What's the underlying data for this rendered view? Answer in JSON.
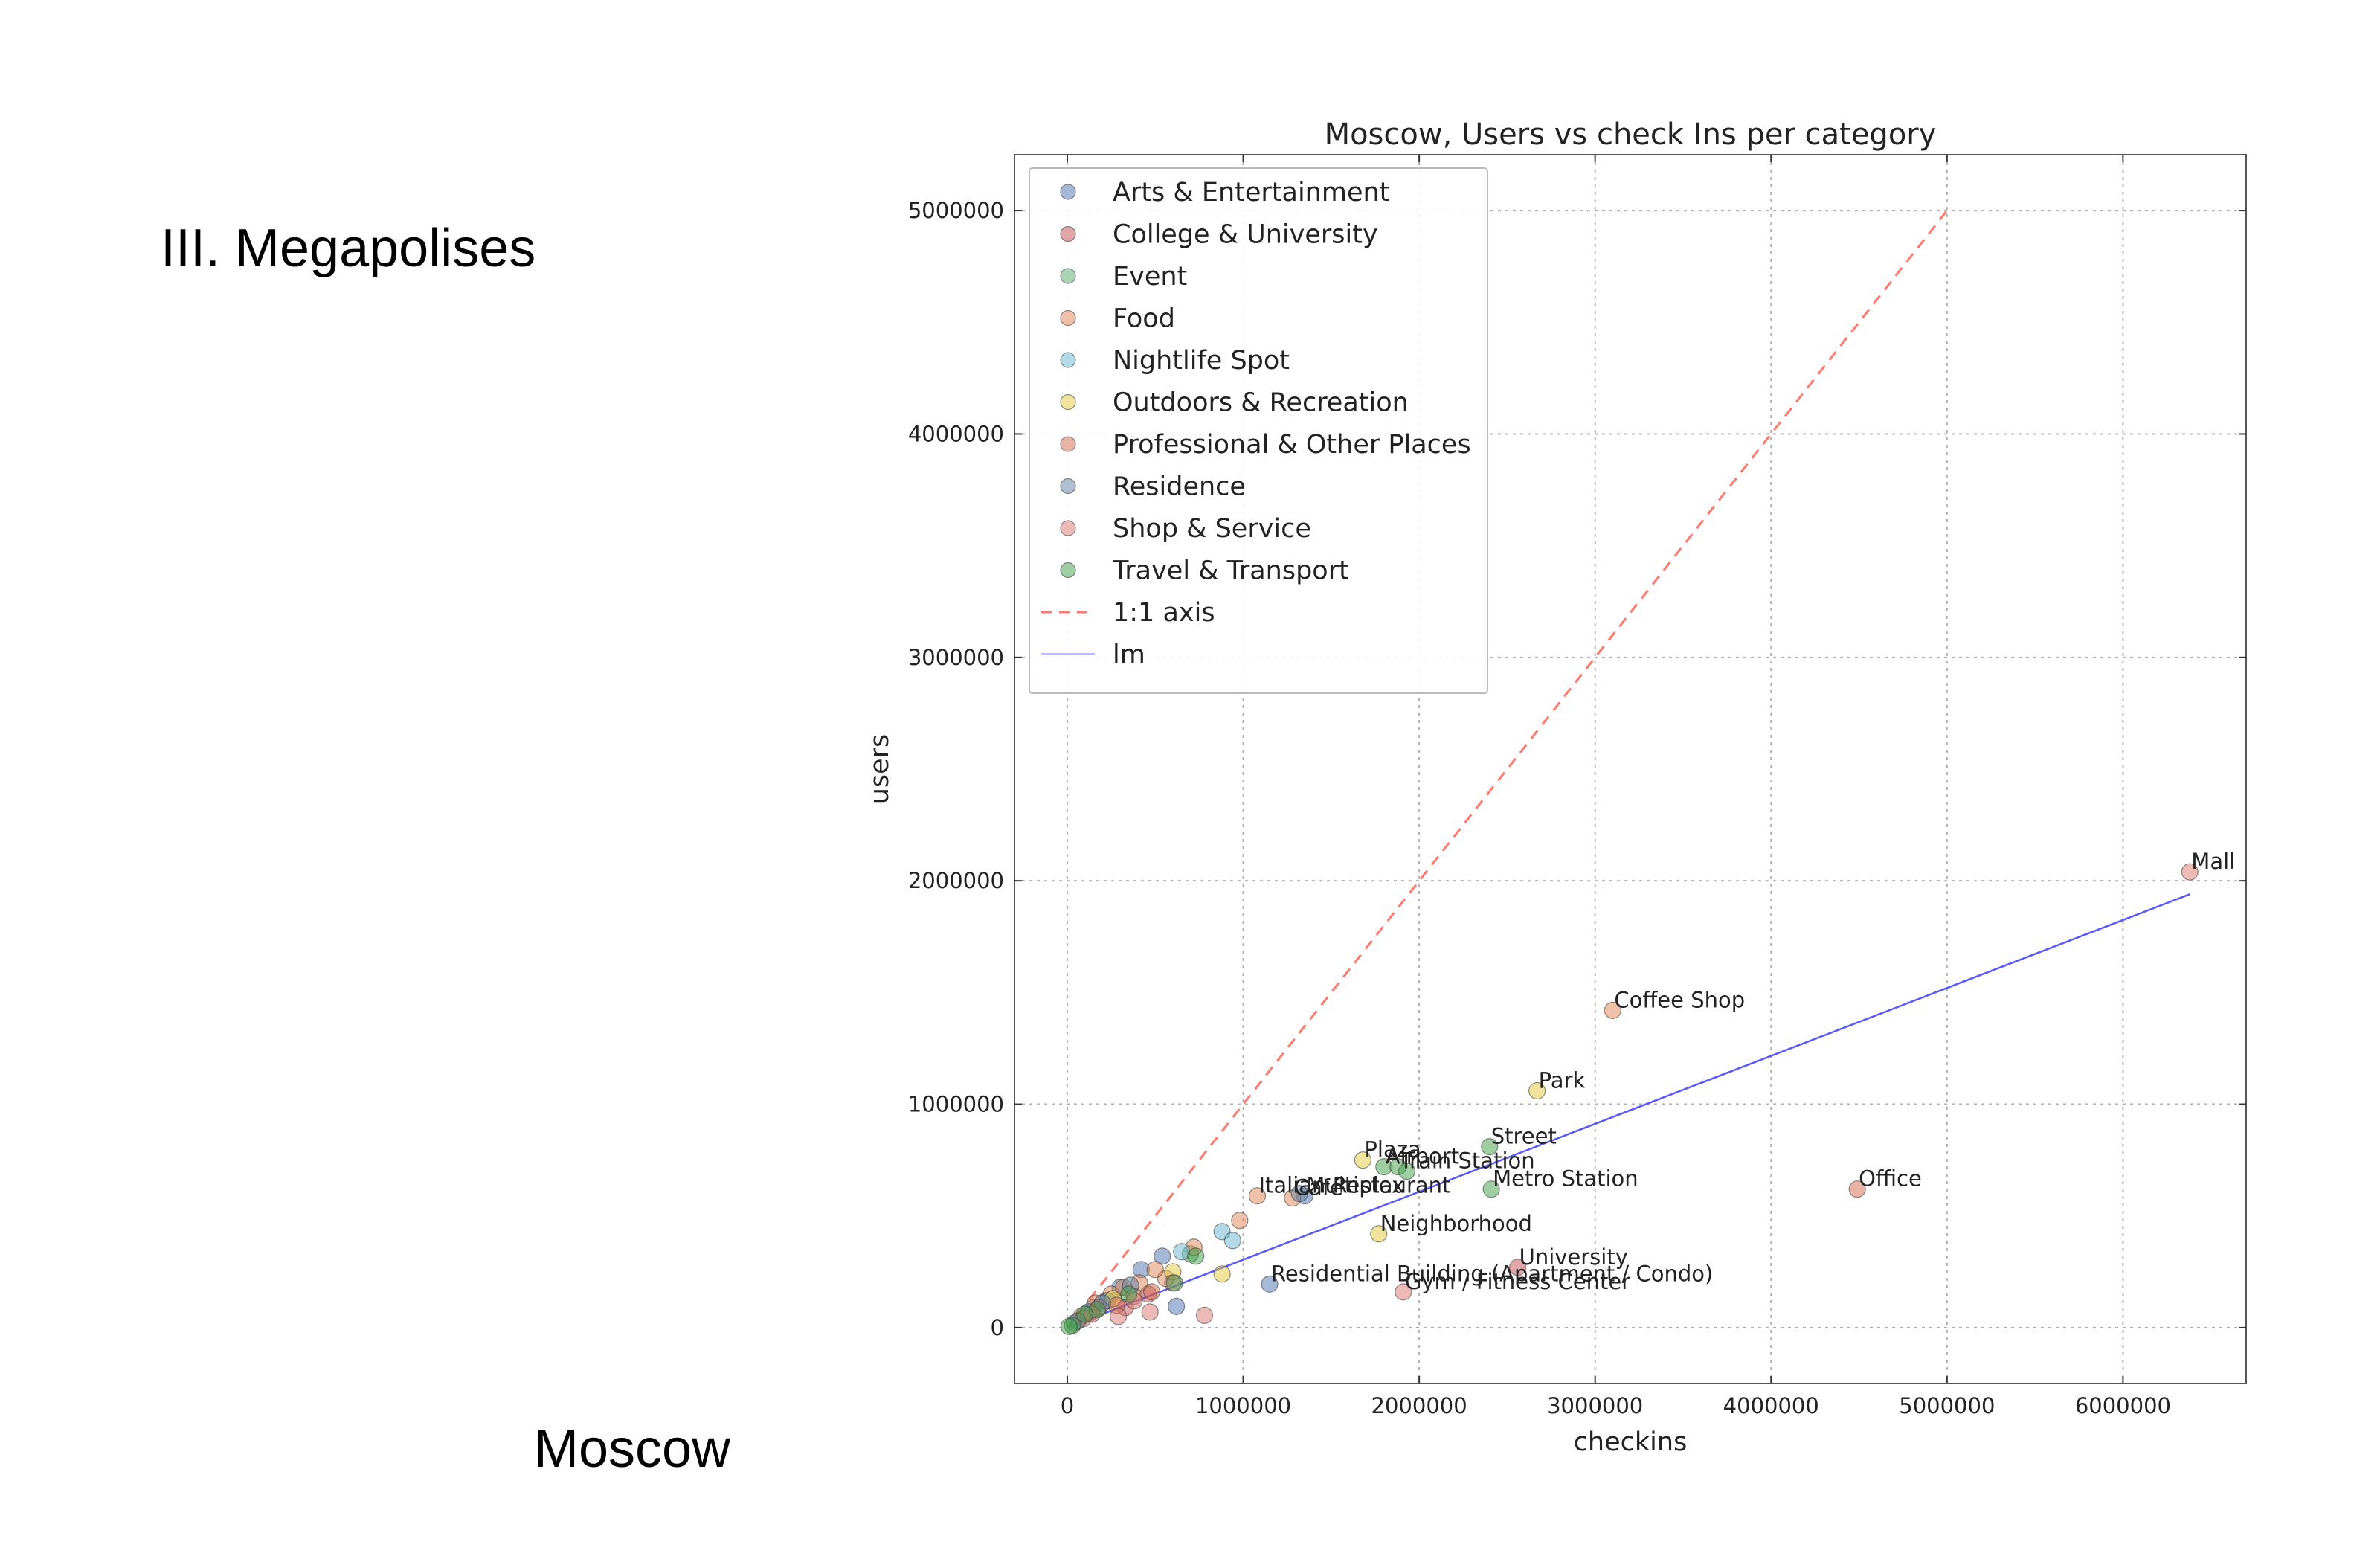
{
  "slide": {
    "heading": "III. Megapolises",
    "caption": "Moscow"
  },
  "chart_data": {
    "type": "scatter",
    "title": "Moscow, Users vs check Ins per category",
    "xlabel": "checkins",
    "ylabel": "users",
    "xlim": [
      -300000,
      6700000
    ],
    "ylim": [
      -250000,
      5250000
    ],
    "xticks": [
      0,
      1000000,
      2000000,
      3000000,
      4000000,
      5000000,
      6000000
    ],
    "yticks": [
      0,
      1000000,
      2000000,
      3000000,
      4000000,
      5000000
    ],
    "grid": true,
    "legend_position": "top-left",
    "series": [
      {
        "name": "Arts & Entertainment",
        "color": "#4c72b0",
        "points": [
          [
            1150000,
            195000
          ],
          [
            420000,
            260000
          ],
          [
            540000,
            320000
          ],
          [
            620000,
            95000
          ],
          [
            1350000,
            590000
          ],
          [
            300000,
            180000
          ],
          [
            150000,
            90000
          ]
        ]
      },
      {
        "name": "College & University",
        "color": "#c44e52",
        "points": [
          [
            2560000,
            270000
          ],
          [
            220000,
            120000
          ],
          [
            330000,
            90000
          ],
          [
            120000,
            60000
          ],
          [
            460000,
            150000
          ]
        ]
      },
      {
        "name": "Event",
        "color": "#55a868",
        "points": [
          [
            700000,
            330000
          ],
          [
            40000,
            20000
          ]
        ]
      },
      {
        "name": "Food",
        "color": "#dd8452",
        "points": [
          [
            3100000,
            1420000
          ],
          [
            1080000,
            590000
          ],
          [
            1280000,
            580000
          ],
          [
            980000,
            480000
          ],
          [
            720000,
            360000
          ],
          [
            560000,
            220000
          ],
          [
            410000,
            200000
          ],
          [
            250000,
            150000
          ],
          [
            160000,
            110000
          ],
          [
            80000,
            50000
          ],
          [
            500000,
            260000
          ],
          [
            320000,
            180000
          ]
        ]
      },
      {
        "name": "Nightlife Spot",
        "color": "#64b5cd",
        "points": [
          [
            880000,
            430000
          ],
          [
            940000,
            390000
          ],
          [
            650000,
            340000
          ],
          [
            230000,
            120000
          ],
          [
            120000,
            70000
          ]
        ]
      },
      {
        "name": "Outdoors & Recreation",
        "color": "#e1c83a",
        "points": [
          [
            2670000,
            1060000
          ],
          [
            1680000,
            750000
          ],
          [
            1770000,
            420000
          ],
          [
            880000,
            240000
          ],
          [
            600000,
            250000
          ],
          [
            260000,
            130000
          ]
        ]
      },
      {
        "name": "Professional & Other Places",
        "color": "#d46a4c",
        "points": [
          [
            4490000,
            620000
          ],
          [
            480000,
            160000
          ],
          [
            280000,
            100000
          ],
          [
            180000,
            90000
          ],
          [
            90000,
            40000
          ],
          [
            380000,
            140000
          ]
        ]
      },
      {
        "name": "Residence",
        "color": "#5f7fa4",
        "points": [
          [
            1320000,
            600000
          ],
          [
            360000,
            190000
          ],
          [
            200000,
            110000
          ],
          [
            60000,
            30000
          ]
        ]
      },
      {
        "name": "Shop & Service",
        "color": "#d9786f",
        "points": [
          [
            6380000,
            2040000
          ],
          [
            1910000,
            160000
          ],
          [
            780000,
            55000
          ],
          [
            470000,
            70000
          ],
          [
            290000,
            50000
          ],
          [
            140000,
            60000
          ],
          [
            600000,
            200000
          ],
          [
            380000,
            120000
          ]
        ]
      },
      {
        "name": "Travel & Transport",
        "color": "#3f9e47",
        "points": [
          [
            2400000,
            810000
          ],
          [
            1800000,
            720000
          ],
          [
            1880000,
            720000
          ],
          [
            1930000,
            700000
          ],
          [
            2410000,
            620000
          ],
          [
            730000,
            320000
          ],
          [
            610000,
            200000
          ],
          [
            350000,
            150000
          ],
          [
            170000,
            80000
          ],
          [
            100000,
            60000
          ],
          [
            30000,
            10000
          ],
          [
            10000,
            5000
          ]
        ]
      }
    ],
    "annotations": [
      {
        "text": "Mall",
        "x": 6380000,
        "y": 2040000
      },
      {
        "text": "Coffee Shop",
        "x": 3100000,
        "y": 1420000
      },
      {
        "text": "Park",
        "x": 2670000,
        "y": 1060000
      },
      {
        "text": "Street",
        "x": 2400000,
        "y": 810000
      },
      {
        "text": "Plaza",
        "x": 1680000,
        "y": 750000
      },
      {
        "text": "Airport",
        "x": 1800000,
        "y": 720000
      },
      {
        "text": "Train Station",
        "x": 1880000,
        "y": 700000
      },
      {
        "text": "Metro Station",
        "x": 2410000,
        "y": 620000
      },
      {
        "text": "Office",
        "x": 4490000,
        "y": 620000
      },
      {
        "text": "Italian Restaurant",
        "x": 1080000,
        "y": 590000
      },
      {
        "text": "Café",
        "x": 1280000,
        "y": 580000
      },
      {
        "text": "Multiplex",
        "x": 1350000,
        "y": 590000
      },
      {
        "text": "Neighborhood",
        "x": 1770000,
        "y": 420000
      },
      {
        "text": "University",
        "x": 2560000,
        "y": 270000
      },
      {
        "text": "Residential Building (Apartment / Condo)",
        "x": 1150000,
        "y": 195000
      },
      {
        "text": "Gym / Fitness Center",
        "x": 1910000,
        "y": 160000
      }
    ],
    "reference_lines": [
      {
        "name": "1:1 axis",
        "style": "dashed",
        "color": "#ff6a5c",
        "x": [
          0,
          5000000
        ],
        "y": [
          0,
          5000000
        ]
      },
      {
        "name": "lm",
        "style": "solid",
        "color": "#3b3bff",
        "x": [
          0,
          6380000
        ],
        "y": [
          0,
          1940000
        ]
      }
    ]
  }
}
